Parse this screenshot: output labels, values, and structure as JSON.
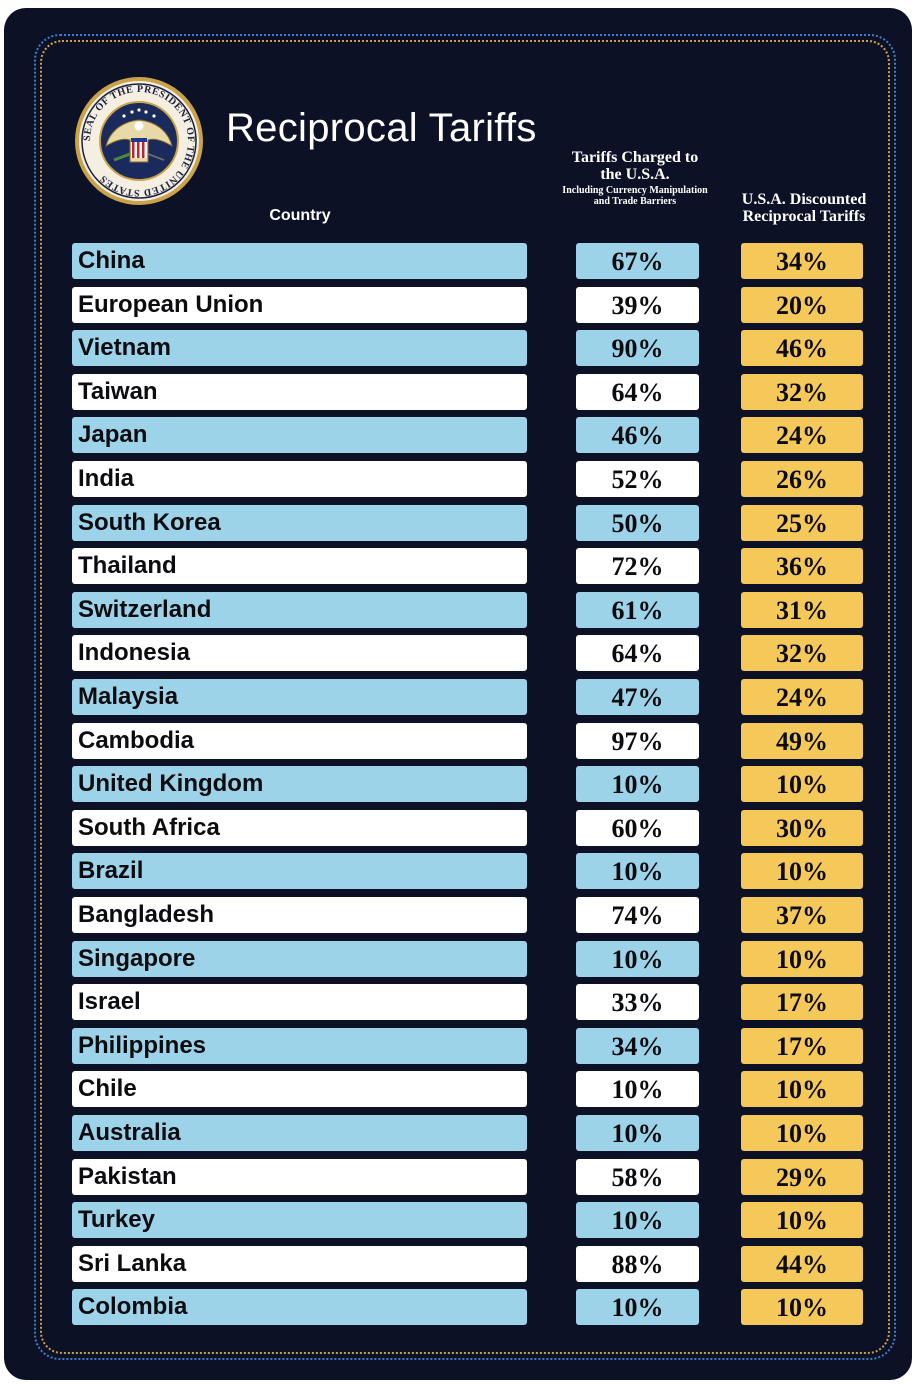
{
  "title": "Reciprocal Tariffs",
  "seal_text": "SEAL OF THE PRESIDENT OF THE UNITED STATES",
  "headers": {
    "country": "Country",
    "charged_main": "Tariffs Charged to the U.S.A.",
    "charged_sub": "Including Currency Manipulation and Trade Barriers",
    "discounted": "U.S.A. Discounted Reciprocal Tariffs"
  },
  "colors": {
    "background": "#0c1126",
    "row_blue": "#9dd3e8",
    "row_white": "#ffffff",
    "reciprocal_gold": "#f5c85a",
    "border_blue": "#3f7fc8",
    "border_gold": "#c9a24a"
  },
  "chart_data": {
    "type": "table",
    "title": "Reciprocal Tariffs",
    "columns": [
      "Country",
      "Tariffs Charged to the U.S.A. Including Currency Manipulation and Trade Barriers",
      "U.S.A. Discounted Reciprocal Tariffs"
    ],
    "rows": [
      {
        "country": "China",
        "charged": "67%",
        "reciprocal": "34%"
      },
      {
        "country": "European Union",
        "charged": "39%",
        "reciprocal": "20%"
      },
      {
        "country": "Vietnam",
        "charged": "90%",
        "reciprocal": "46%"
      },
      {
        "country": "Taiwan",
        "charged": "64%",
        "reciprocal": "32%"
      },
      {
        "country": "Japan",
        "charged": "46%",
        "reciprocal": "24%"
      },
      {
        "country": "India",
        "charged": "52%",
        "reciprocal": "26%"
      },
      {
        "country": "South Korea",
        "charged": "50%",
        "reciprocal": "25%"
      },
      {
        "country": "Thailand",
        "charged": "72%",
        "reciprocal": "36%"
      },
      {
        "country": "Switzerland",
        "charged": "61%",
        "reciprocal": "31%"
      },
      {
        "country": "Indonesia",
        "charged": "64%",
        "reciprocal": "32%"
      },
      {
        "country": "Malaysia",
        "charged": "47%",
        "reciprocal": "24%"
      },
      {
        "country": "Cambodia",
        "charged": "97%",
        "reciprocal": "49%"
      },
      {
        "country": "United Kingdom",
        "charged": "10%",
        "reciprocal": "10%"
      },
      {
        "country": "South Africa",
        "charged": "60%",
        "reciprocal": "30%"
      },
      {
        "country": "Brazil",
        "charged": "10%",
        "reciprocal": "10%"
      },
      {
        "country": "Bangladesh",
        "charged": "74%",
        "reciprocal": "37%"
      },
      {
        "country": "Singapore",
        "charged": "10%",
        "reciprocal": "10%"
      },
      {
        "country": "Israel",
        "charged": "33%",
        "reciprocal": "17%"
      },
      {
        "country": "Philippines",
        "charged": "34%",
        "reciprocal": "17%"
      },
      {
        "country": "Chile",
        "charged": "10%",
        "reciprocal": "10%"
      },
      {
        "country": "Australia",
        "charged": "10%",
        "reciprocal": "10%"
      },
      {
        "country": "Pakistan",
        "charged": "58%",
        "reciprocal": "29%"
      },
      {
        "country": "Turkey",
        "charged": "10%",
        "reciprocal": "10%"
      },
      {
        "country": "Sri Lanka",
        "charged": "88%",
        "reciprocal": "44%"
      },
      {
        "country": "Colombia",
        "charged": "10%",
        "reciprocal": "10%"
      }
    ]
  }
}
